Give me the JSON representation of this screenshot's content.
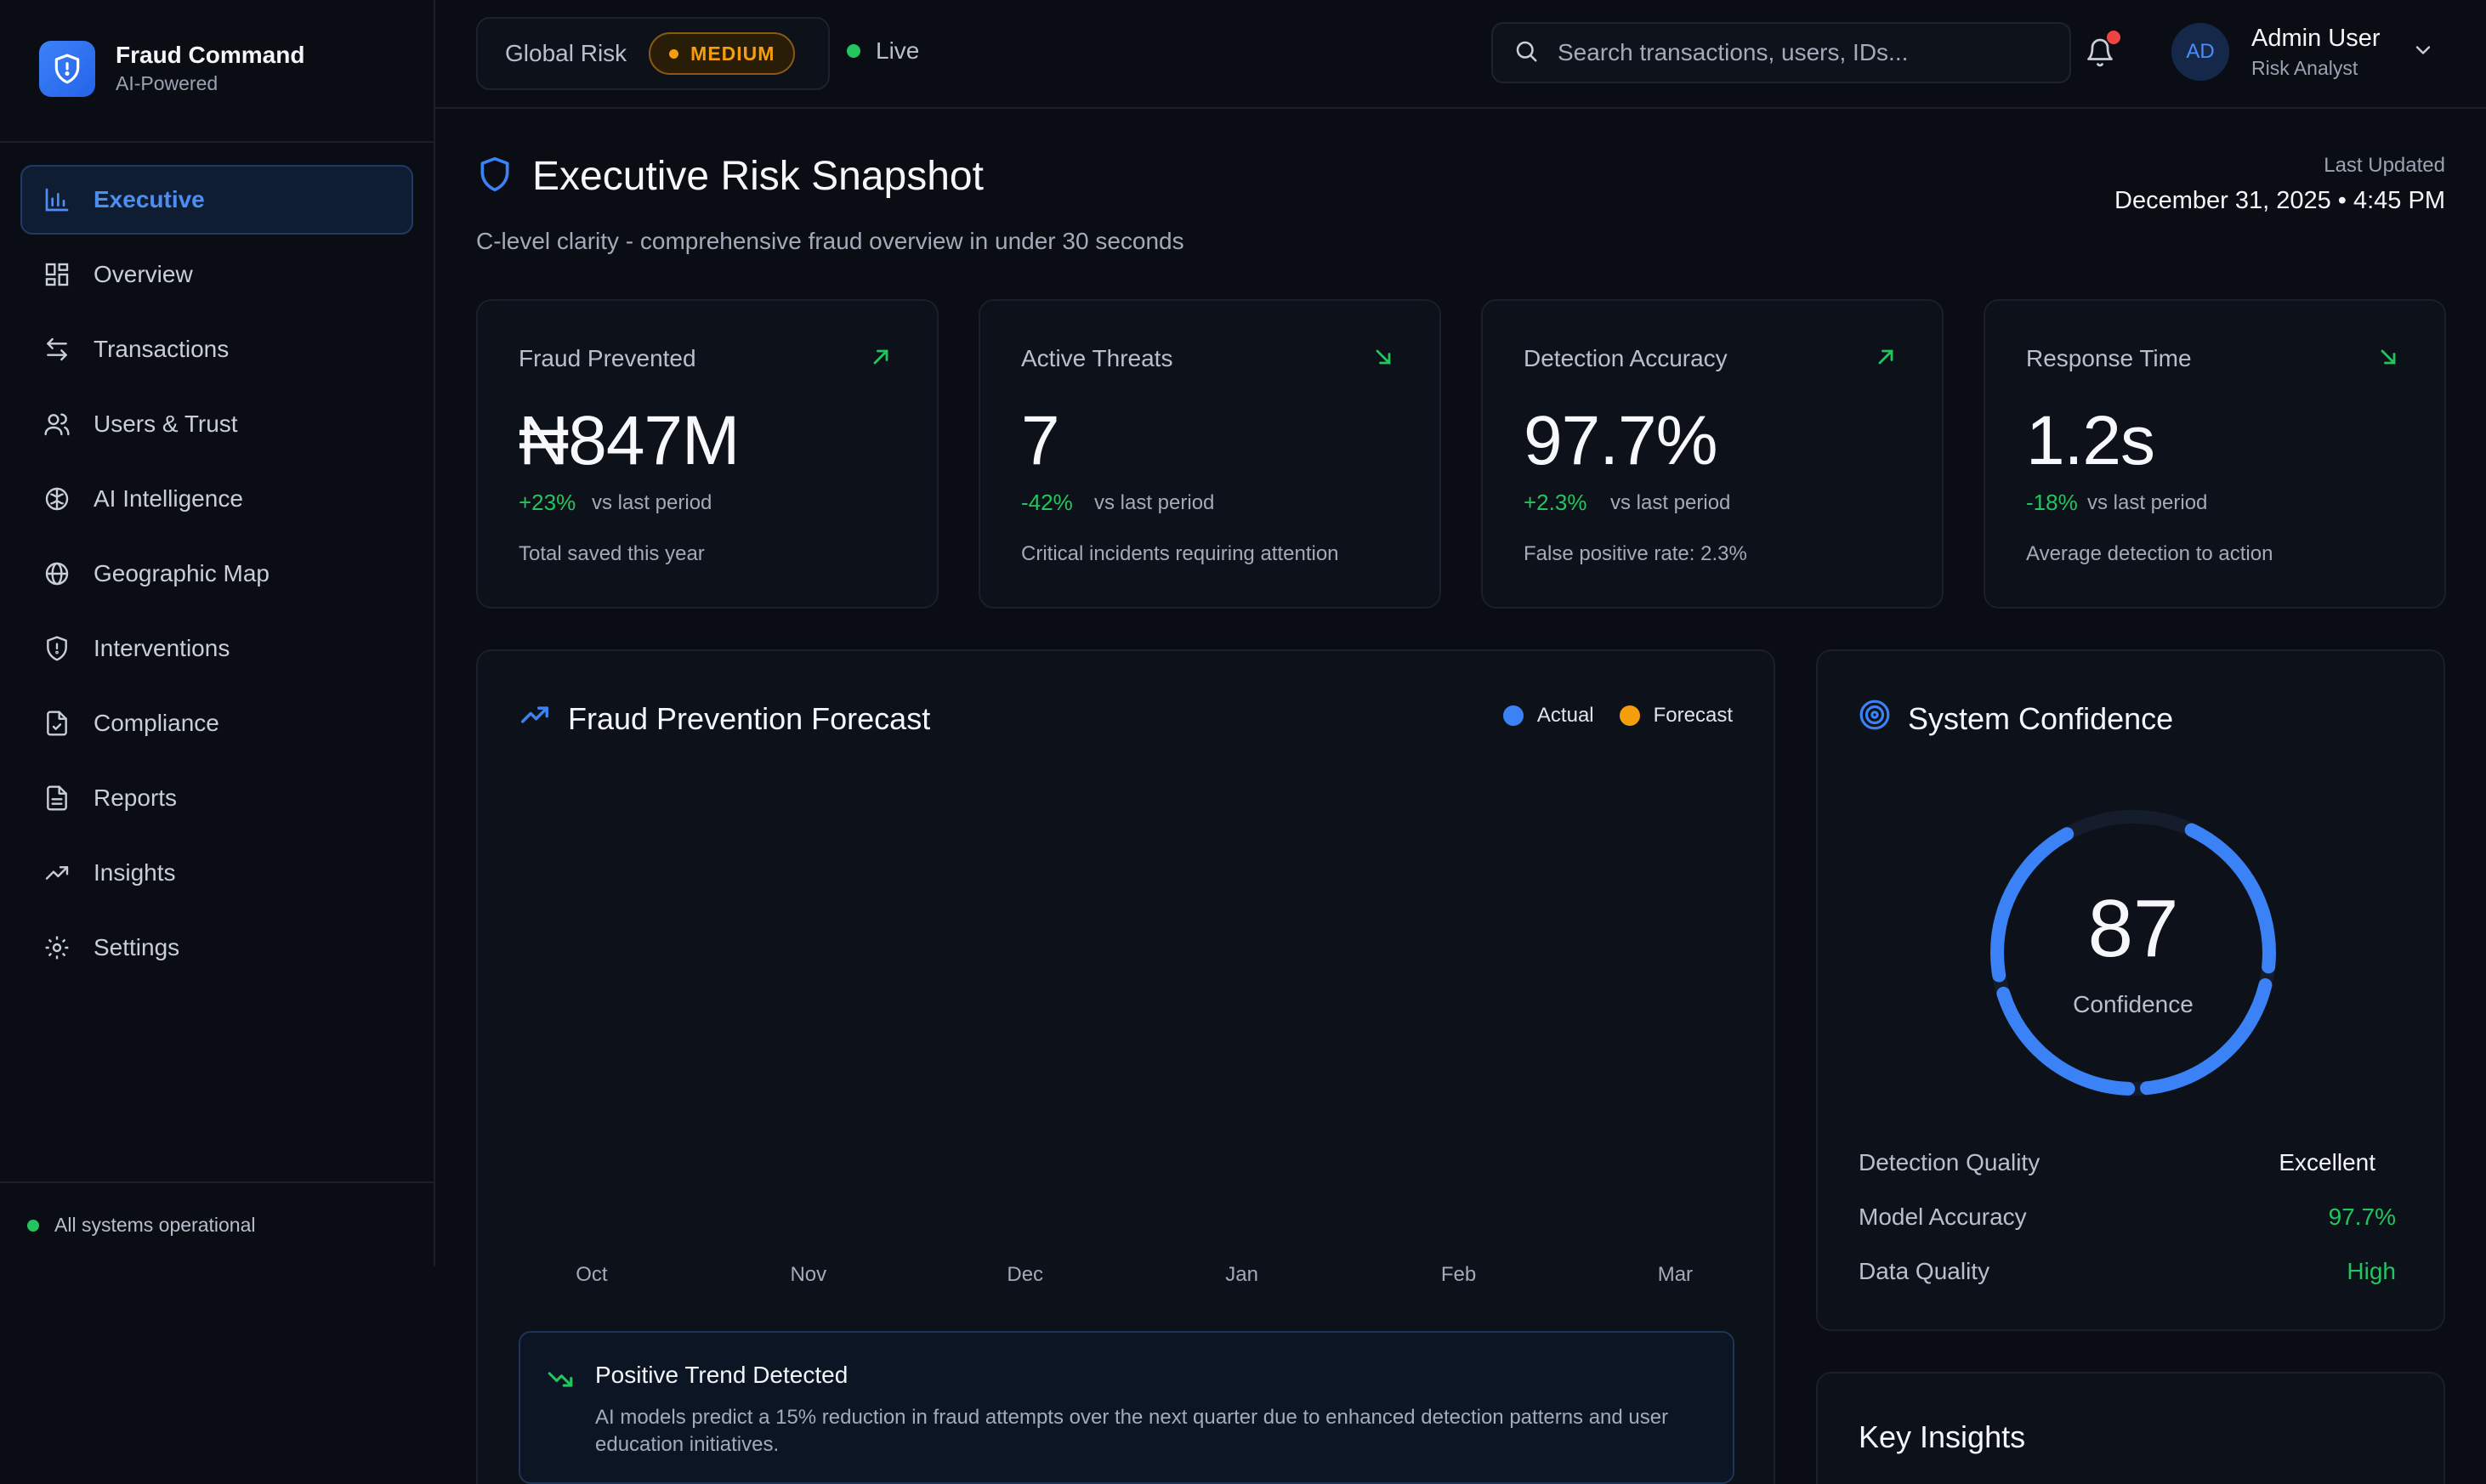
{
  "brand": {
    "title": "Fraud Command",
    "subtitle": "AI-Powered"
  },
  "sidebar": {
    "items": [
      {
        "label": "Executive",
        "icon": "bar-chart-icon",
        "active": true
      },
      {
        "label": "Overview",
        "icon": "grid-icon"
      },
      {
        "label": "Transactions",
        "icon": "arrows-swap-icon"
      },
      {
        "label": "Users & Trust",
        "icon": "users-icon"
      },
      {
        "label": "AI Intelligence",
        "icon": "brain-icon"
      },
      {
        "label": "Geographic Map",
        "icon": "globe-icon"
      },
      {
        "label": "Interventions",
        "icon": "shield-alert-icon"
      },
      {
        "label": "Compliance",
        "icon": "file-check-icon"
      },
      {
        "label": "Reports",
        "icon": "file-text-icon"
      },
      {
        "label": "Insights",
        "icon": "trending-up-icon"
      },
      {
        "label": "Settings",
        "icon": "gear-icon"
      }
    ],
    "status": "All systems operational"
  },
  "topbar": {
    "risk_label": "Global Risk",
    "risk_level": "MEDIUM",
    "live_label": "Live",
    "search_placeholder": "Search transactions, users, IDs...",
    "user": {
      "initials": "AD",
      "name": "Admin User",
      "role": "Risk Analyst"
    }
  },
  "header": {
    "title": "Executive Risk Snapshot",
    "subtitle": "C-level clarity - comprehensive fraud overview in under 30 seconds",
    "updated_label": "Last Updated",
    "updated_value": "December 31, 2025 • 4:45 PM"
  },
  "kpis": [
    {
      "label": "Fraud Prevented",
      "value": "₦847M",
      "change": "+23%",
      "vs": "vs last period",
      "desc": "Total saved this year",
      "trend": "up"
    },
    {
      "label": "Active Threats",
      "value": "7",
      "change": "-42%",
      "vs": "vs last period",
      "desc": "Critical incidents requiring attention",
      "trend": "down"
    },
    {
      "label": "Detection Accuracy",
      "value": "97.7%",
      "change": "+2.3%",
      "vs": "vs last period",
      "desc": "False positive rate: 2.3%",
      "trend": "up"
    },
    {
      "label": "Response Time",
      "value": "1.2s",
      "change": "-18%",
      "vs": "vs last period",
      "desc": "Average detection to action",
      "trend": "down"
    }
  ],
  "forecast": {
    "title": "Fraud Prevention Forecast",
    "legend": {
      "actual": "Actual",
      "forecast": "Forecast"
    },
    "months": [
      "Oct",
      "Nov",
      "Dec",
      "Jan",
      "Feb",
      "Mar"
    ],
    "trend_title": "Positive Trend Detected",
    "trend_body": "AI models predict a 15% reduction in fraud attempts over the next quarter due to enhanced detection patterns and user education initiatives."
  },
  "confidence": {
    "title": "System Confidence",
    "value": "87",
    "fill_percent": 87,
    "label": "Confidence",
    "metrics": [
      {
        "key": "Detection Quality",
        "value": "Excellent"
      },
      {
        "key": "Model Accuracy",
        "value": "97.7%"
      },
      {
        "key": "Data Quality",
        "value": "High"
      }
    ]
  },
  "insights": {
    "title": "Key Insights"
  },
  "colors": {
    "accent": "#3b82f6",
    "positive": "#22c55e",
    "warning": "#f59e0b",
    "alert": "#ef4444",
    "background": "#0a0d14"
  }
}
